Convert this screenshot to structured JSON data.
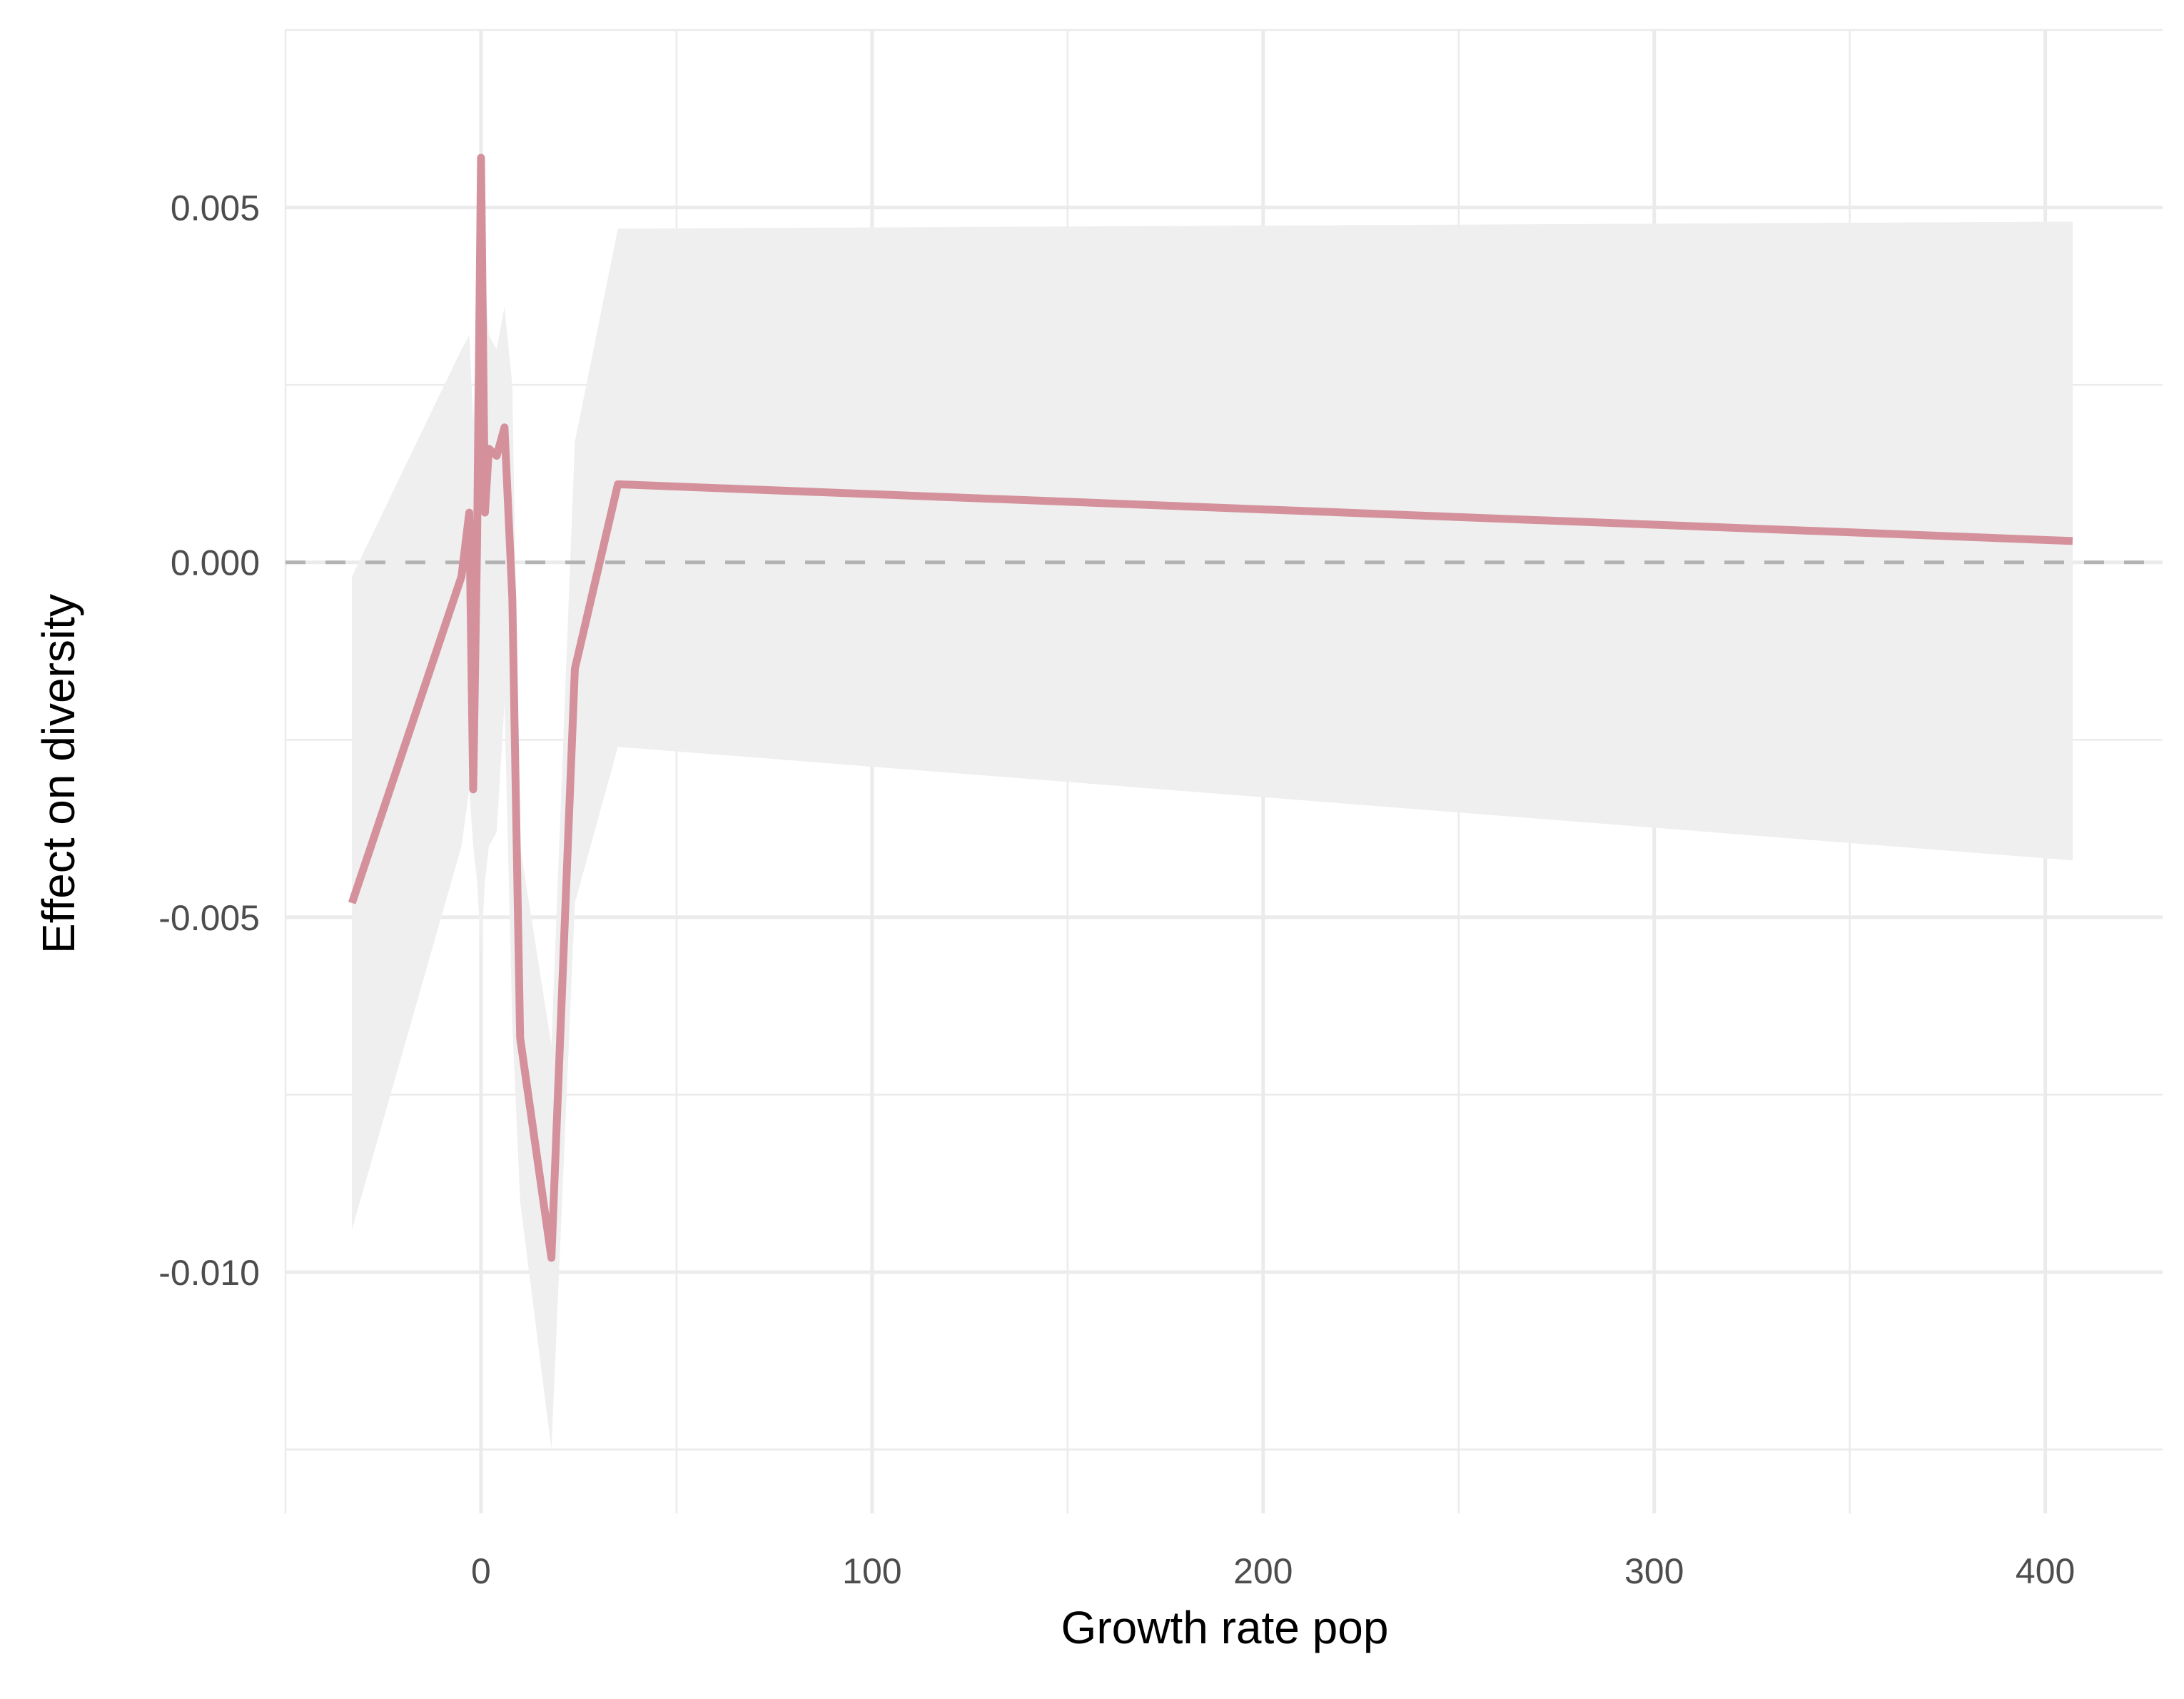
{
  "chart_data": {
    "type": "line",
    "title": "",
    "xlabel": "Growth rate pop",
    "ylabel": "Effect on diversity",
    "xlim": [
      -50,
      430
    ],
    "ylim": [
      -0.0134,
      0.0075
    ],
    "x_ticks": [
      0,
      100,
      200,
      300,
      400
    ],
    "x_tick_labels": [
      "0",
      "100",
      "200",
      "300",
      "400"
    ],
    "x_minor_ticks": [
      -50,
      50,
      150,
      250,
      350
    ],
    "y_ticks": [
      -0.01,
      -0.005,
      0.0,
      0.005
    ],
    "y_tick_labels": [
      "-0.010",
      "-0.005",
      "0.000",
      "0.005"
    ],
    "y_minor_ticks": [
      -0.0125,
      -0.0075,
      -0.0025,
      0.0025,
      0.0075
    ],
    "grid": true,
    "reference_line": {
      "y": 0,
      "style": "dashed",
      "color": "#b3b3b3"
    },
    "series": [
      {
        "color": "#d4919c",
        "band_color": "#efefef",
        "x": [
          -33,
          -5,
          -3,
          -2,
          -1,
          0,
          1,
          2,
          4,
          6,
          8,
          10,
          18,
          24,
          35,
          407
        ],
        "y": [
          -0.0048,
          -0.0002,
          0.0007,
          -0.0032,
          0.0003,
          0.0057,
          0.0007,
          0.0016,
          0.0015,
          0.0019,
          -0.0005,
          -0.0067,
          -0.0098,
          -0.0015,
          0.0011,
          0.0003
        ],
        "lower": [
          -0.0094,
          -0.004,
          -0.0032,
          -0.004,
          -0.0045,
          -0.0055,
          -0.0045,
          -0.004,
          -0.0038,
          -0.002,
          -0.0065,
          -0.009,
          -0.0125,
          -0.0048,
          -0.0026,
          -0.0042
        ],
        "upper": [
          -0.0002,
          0.003,
          0.0032,
          0.002,
          0.0035,
          0.0058,
          0.004,
          0.0032,
          0.003,
          0.0036,
          0.0025,
          -0.004,
          -0.0068,
          0.0017,
          0.0047,
          0.0048
        ]
      }
    ]
  }
}
